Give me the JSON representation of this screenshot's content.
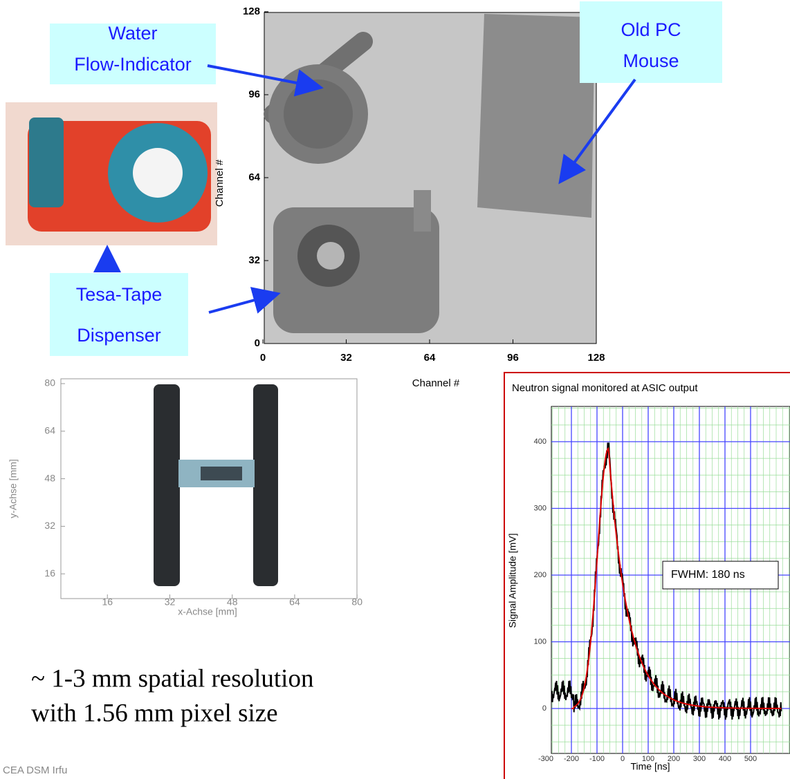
{
  "callouts": [
    {
      "lines": [
        "Water",
        "Flow-Indicator"
      ]
    },
    {
      "lines": [
        "Old PC",
        "Mouse"
      ]
    },
    {
      "lines": [
        "Tesa-Tape",
        "Dispenser"
      ]
    }
  ],
  "neutron_image": {
    "x_label": "Channel #",
    "y_label": "Channel #",
    "xticks": [
      0,
      32,
      64,
      96,
      128
    ],
    "yticks": [
      0,
      32,
      64,
      96,
      128
    ]
  },
  "h_image": {
    "x_label": "x-Achse [mm]",
    "y_label": "y-Achse [mm]",
    "xticks": [
      16,
      32,
      48,
      64,
      80
    ],
    "yticks": [
      16,
      32,
      48,
      64,
      80
    ]
  },
  "signal_plot": {
    "title": "Neutron signal monitored at ASIC output",
    "x_label": "Time [ns]",
    "y_label": "Signal Amplitude [mV]",
    "xticks": [
      -300,
      -200,
      -100,
      0,
      100,
      200,
      300,
      400,
      500
    ],
    "yticks": [
      0,
      100,
      200,
      300,
      400
    ],
    "annotation": "FWHM: 180 ns"
  },
  "caption": [
    "~ 1-3 mm spatial resolution",
    "with 1.56 mm pixel size"
  ],
  "footer": "CEA DSM Irfu"
}
